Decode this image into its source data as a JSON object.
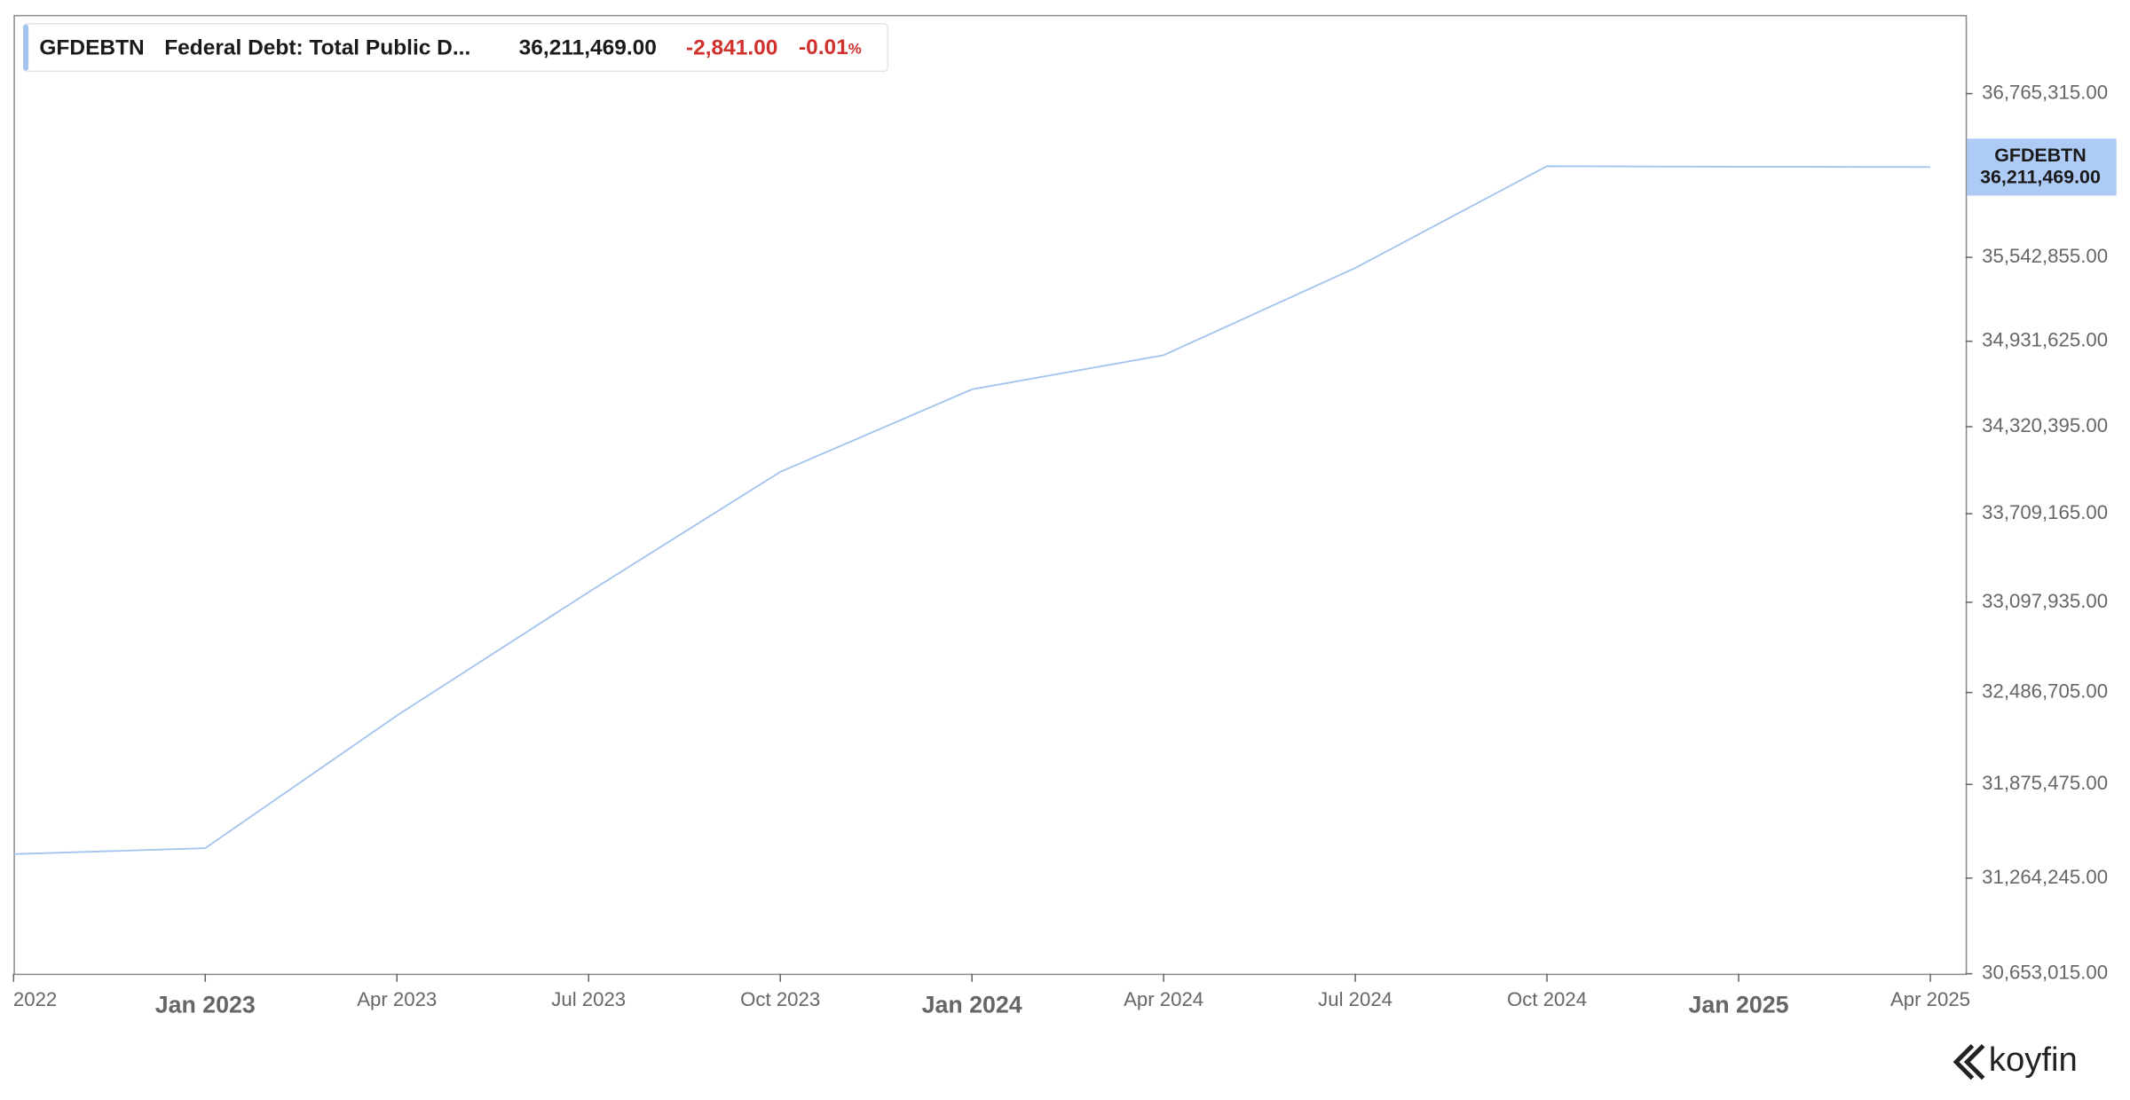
{
  "legend": {
    "symbol": "GFDEBTN",
    "name": "Federal Debt: Total Public D...",
    "last_value": "36,211,469.00",
    "change": "-2,841.00",
    "change_pct": "-0.01",
    "pct_unit": "%"
  },
  "chart_data": {
    "type": "line",
    "x": [
      "2022-10",
      "2023-01",
      "2023-04",
      "2023-07",
      "2023-10",
      "2024-01",
      "2024-04",
      "2024-07",
      "2024-10",
      "2025-01",
      "2025-04"
    ],
    "series": [
      {
        "name": "GFDEBTN",
        "color": "#a3c4ee",
        "values": [
          31419689,
          31458438,
          32332274,
          33167334,
          34001494,
          34586533,
          34831634,
          35464674,
          36218605,
          36214310,
          36211469
        ]
      }
    ],
    "xlim": [
      "2022-10",
      "2025-04"
    ],
    "xticks": [
      {
        "value": "2022-10",
        "label": "2022"
      },
      {
        "value": "2023-01",
        "label": "Jan 2023"
      },
      {
        "value": "2023-04",
        "label": "Apr 2023"
      },
      {
        "value": "2023-07",
        "label": "Jul 2023"
      },
      {
        "value": "2023-10",
        "label": "Oct 2023"
      },
      {
        "value": "2024-01",
        "label": "Jan 2024"
      },
      {
        "value": "2024-04",
        "label": "Apr 2024"
      },
      {
        "value": "2024-07",
        "label": "Jul 2024"
      },
      {
        "value": "2024-10",
        "label": "Oct 2024"
      },
      {
        "value": "2025-01",
        "label": "Jan 2025"
      },
      {
        "value": "2025-04",
        "label": "Apr 2025"
      }
    ],
    "ylim": [
      30653015,
      37368000
    ],
    "yticks": [
      {
        "value": 30653015,
        "label": "30,653,015.00"
      },
      {
        "value": 31264245,
        "label": "31,264,245.00"
      },
      {
        "value": 31875475,
        "label": "31,875,475.00"
      },
      {
        "value": 32486705,
        "label": "32,486,705.00"
      },
      {
        "value": 33097935,
        "label": "33,097,935.00"
      },
      {
        "value": 33709165,
        "label": "33,709,165.00"
      },
      {
        "value": 34320395,
        "label": "34,320,395.00"
      },
      {
        "value": 34931625,
        "label": "34,931,625.00"
      },
      {
        "value": 35542855,
        "label": "35,542,855.00"
      },
      {
        "value": 36765315,
        "label": "36,765,315.00"
      }
    ],
    "log_y": true,
    "grid": false,
    "last_label": "36,211,469.00",
    "badge_color": "#aecbf5"
  },
  "branding": {
    "logo": "koyfin"
  }
}
